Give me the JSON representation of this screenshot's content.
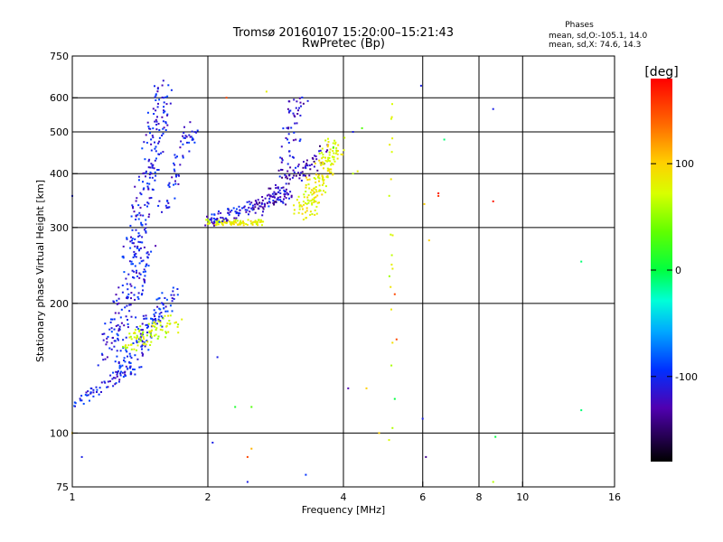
{
  "chart_data": {
    "type": "scatter",
    "title": "Tromsø 20160107 15:20:00–15:21:43",
    "subtitle": "RwPretec (Bp)",
    "xlabel": "Frequency [MHz]",
    "ylabel": "Stationary phase Virtual Height [km]",
    "x_scale": "log",
    "y_scale": "log",
    "xlim": [
      1,
      16
    ],
    "ylim": [
      75,
      750
    ],
    "x_ticks": [
      1,
      2,
      4,
      6,
      8,
      10,
      16
    ],
    "x_tick_labels": [
      "1",
      "2",
      "4",
      "6",
      "8",
      "10",
      "16"
    ],
    "y_ticks": [
      75,
      100,
      200,
      300,
      400,
      500,
      600,
      750
    ],
    "y_tick_labels": [
      "75",
      "100",
      "200",
      "300",
      "400",
      "500",
      "600",
      "750"
    ],
    "grid": true,
    "phases_box": {
      "title": "Phases",
      "line_o": "mean, sd,O:-105.1, 14.0",
      "line_x": "mean, sd,X:  74.6, 14.3"
    },
    "colorbar": {
      "label": "[deg]",
      "range": [
        -180,
        180
      ],
      "ticks": [
        100,
        0,
        -100
      ],
      "tick_labels": [
        "100",
        "0",
        "-100"
      ]
    },
    "traces": [
      {
        "from": [
          1.0,
          115
        ],
        "to": [
          1.45,
          150
        ],
        "spread": 0.03,
        "count": 70,
        "phase": -110
      },
      {
        "from": [
          1.2,
          150
        ],
        "to": [
          1.45,
          260
        ],
        "spread": 0.06,
        "count": 140,
        "phase": -110
      },
      {
        "from": [
          1.3,
          140
        ],
        "to": [
          1.65,
          210
        ],
        "spread": 0.05,
        "count": 120,
        "phase": -105
      },
      {
        "from": [
          1.3,
          160
        ],
        "to": [
          1.7,
          180
        ],
        "spread": 0.05,
        "count": 90,
        "phase": 70
      },
      {
        "from": [
          1.35,
          250
        ],
        "to": [
          1.6,
          640
        ],
        "spread": 0.05,
        "count": 190,
        "phase": -110
      },
      {
        "from": [
          1.58,
          320
        ],
        "to": [
          1.85,
          520
        ],
        "spread": 0.04,
        "count": 60,
        "phase": -110
      },
      {
        "from": [
          2.0,
          308
        ],
        "to": [
          2.65,
          308
        ],
        "spread": 0.015,
        "count": 90,
        "phase": 80
      },
      {
        "from": [
          2.0,
          310
        ],
        "to": [
          3.0,
          360
        ],
        "spread": 0.03,
        "count": 110,
        "phase": -115
      },
      {
        "from": [
          2.9,
          340
        ],
        "to": [
          3.2,
          610
        ],
        "spread": 0.05,
        "count": 80,
        "phase": -120
      },
      {
        "from": [
          2.6,
          330
        ],
        "to": [
          3.7,
          460
        ],
        "spread": 0.04,
        "count": 90,
        "phase": -130
      },
      {
        "from": [
          3.25,
          320
        ],
        "to": [
          3.85,
          470
        ],
        "spread": 0.05,
        "count": 170,
        "phase": 80
      },
      {
        "from": [
          5.1,
          85
        ],
        "to": [
          5.1,
          620
        ],
        "spread": 0.01,
        "count": 20,
        "phase": 70
      }
    ],
    "scattered_points": [
      [
        2.45,
        88,
        150
      ],
      [
        2.5,
        92,
        110
      ],
      [
        2.3,
        115,
        10
      ],
      [
        2.5,
        115,
        30
      ],
      [
        4.2,
        400,
        60
      ],
      [
        4.3,
        405,
        80
      ],
      [
        3.8,
        460,
        20
      ],
      [
        5.2,
        210,
        150
      ],
      [
        5.25,
        165,
        150
      ],
      [
        6.5,
        355,
        160
      ],
      [
        6.5,
        360,
        170
      ],
      [
        8.6,
        345,
        170
      ],
      [
        8.6,
        565,
        -110
      ],
      [
        8.7,
        98,
        0
      ],
      [
        6.0,
        108,
        -110
      ],
      [
        6.1,
        88,
        -140
      ],
      [
        5.95,
        640,
        -110
      ],
      [
        6.7,
        480,
        -10
      ],
      [
        13.5,
        250,
        -10
      ],
      [
        13.5,
        113,
        -10
      ],
      [
        8.6,
        77,
        60
      ],
      [
        4.1,
        127,
        -130
      ],
      [
        4.5,
        127,
        100
      ],
      [
        5.2,
        120,
        0
      ],
      [
        3.3,
        80,
        -100
      ],
      [
        2.45,
        77,
        -110
      ],
      [
        2.05,
        95,
        -110
      ],
      [
        1.05,
        88,
        -110
      ],
      [
        1.0,
        100,
        100
      ],
      [
        2.1,
        150,
        -110
      ],
      [
        6.2,
        280,
        100
      ],
      [
        6.05,
        340,
        100
      ],
      [
        1.0,
        355,
        -110
      ],
      [
        2.2,
        600,
        150
      ],
      [
        2.7,
        620,
        80
      ],
      [
        4.8,
        100,
        100
      ],
      [
        4.4,
        510,
        30
      ],
      [
        4.2,
        500,
        -110
      ]
    ]
  }
}
